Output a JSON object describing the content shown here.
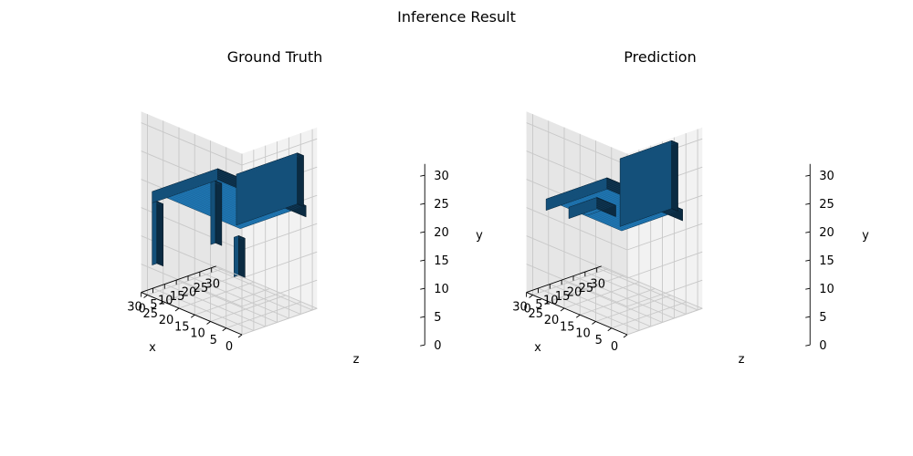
{
  "figure": {
    "suptitle": "Inference Result"
  },
  "chart_data": [
    {
      "type": "voxel",
      "title": "Ground Truth",
      "xlabel": "x",
      "ylabel": "y",
      "zlabel": "z",
      "xlim": [
        0,
        32
      ],
      "ylim": [
        0,
        32
      ],
      "zlim": [
        0,
        32
      ],
      "x_ticks": [
        "0",
        "5",
        "10",
        "15",
        "20",
        "25",
        "30"
      ],
      "y_ticks": [
        "0",
        "5",
        "10",
        "15",
        "20",
        "25",
        "30"
      ],
      "z_ticks": [
        "0",
        "5",
        "10",
        "15",
        "20",
        "25",
        "30"
      ],
      "color": "#1f77b4",
      "voxel_boxes": [
        {
          "part": "seat",
          "x": [
            2,
            30
          ],
          "y": [
            16,
            18
          ],
          "z": [
            2,
            30
          ]
        },
        {
          "part": "backrest",
          "x": [
            2,
            4
          ],
          "y": [
            18,
            27
          ],
          "z": [
            3,
            29
          ]
        },
        {
          "part": "leg",
          "x": [
            2,
            4
          ],
          "y": [
            9,
            16
          ],
          "z": [
            2,
            4
          ]
        },
        {
          "part": "leg",
          "x": [
            28,
            30
          ],
          "y": [
            5,
            16
          ],
          "z": [
            2,
            4
          ]
        },
        {
          "part": "leg",
          "x": [
            28,
            30
          ],
          "y": [
            5,
            16
          ],
          "z": [
            27,
            29
          ]
        }
      ]
    },
    {
      "type": "voxel",
      "title": "Prediction",
      "xlabel": "x",
      "ylabel": "y",
      "zlabel": "z",
      "xlim": [
        0,
        32
      ],
      "ylim": [
        0,
        32
      ],
      "zlim": [
        0,
        32
      ],
      "x_ticks": [
        "0",
        "5",
        "10",
        "15",
        "20",
        "25",
        "30"
      ],
      "y_ticks": [
        "0",
        "5",
        "10",
        "15",
        "20",
        "25",
        "30"
      ],
      "z_ticks": [
        "0",
        "5",
        "10",
        "15",
        "20",
        "25",
        "30"
      ],
      "color": "#1f77b4",
      "voxel_boxes": [
        {
          "part": "seat",
          "x": [
            4,
            28
          ],
          "y": [
            15,
            17
          ],
          "z": [
            3,
            29
          ]
        },
        {
          "part": "backrest",
          "x": [
            4,
            6
          ],
          "y": [
            17,
            29
          ],
          "z": [
            5,
            27
          ]
        },
        {
          "part": "fragment",
          "x": [
            20,
            26
          ],
          "y": [
            13,
            15
          ],
          "z": [
            10,
            22
          ]
        }
      ]
    }
  ]
}
